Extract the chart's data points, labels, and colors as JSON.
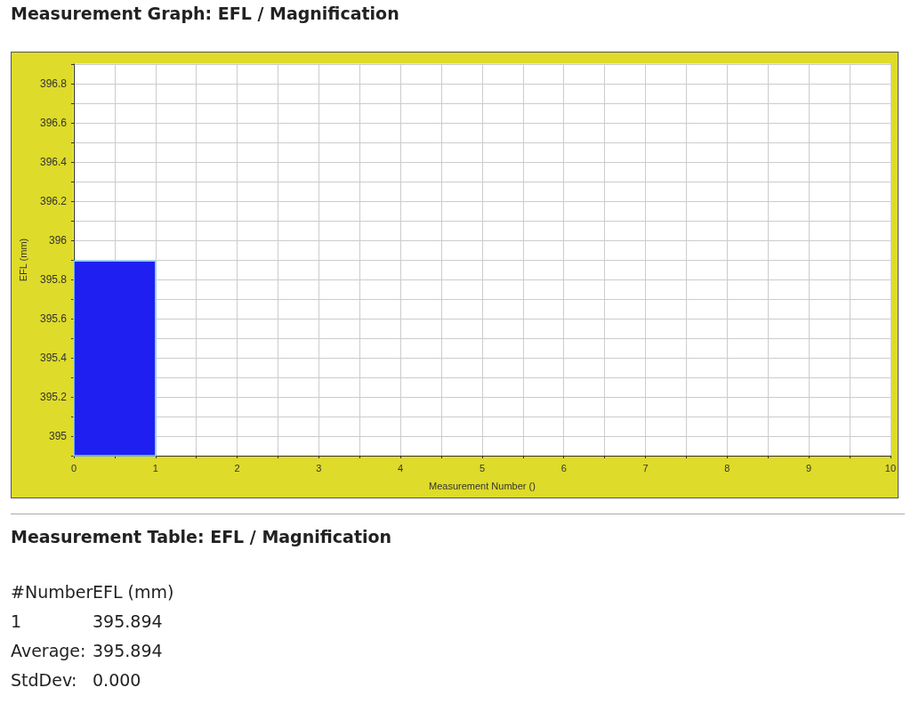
{
  "chart_data": {
    "type": "histogram",
    "title": "Measurement Graph: EFL / Magnification",
    "xlabel": "Measurement Number ()",
    "ylabel": "EFL (mm)",
    "bins": [
      0,
      1
    ],
    "values": [
      395.894
    ],
    "color": "#1f1ff2",
    "xlim": [
      0,
      10
    ],
    "xticks": [
      0,
      {
        "value": 0.5,
        "label": null
      },
      1,
      {
        "value": 1.5,
        "label": null
      },
      2,
      {
        "value": 2.5,
        "label": null
      },
      3,
      {
        "value": 3.5,
        "label": null
      },
      4,
      {
        "value": 4.5,
        "label": null
      },
      5,
      {
        "value": 5.5,
        "label": null
      },
      6,
      {
        "value": 6.5,
        "label": null
      },
      7,
      {
        "value": 7.5,
        "label": null
      },
      8,
      {
        "value": 8.5,
        "label": null
      },
      9,
      {
        "value": 9.5,
        "label": null
      },
      10
    ],
    "ylim": [
      394.9,
      396.9
    ],
    "yticks": [
      {
        "value": 394.9,
        "label": null
      },
      395,
      {
        "value": 395.1,
        "label": null
      },
      395.2,
      {
        "value": 395.3,
        "label": null
      },
      395.4,
      {
        "value": 395.5,
        "label": null
      },
      395.6,
      {
        "value": 395.7,
        "label": null
      },
      395.8,
      {
        "value": 395.9,
        "label": null
      },
      396,
      {
        "value": 396.1,
        "label": null
      },
      396.2,
      {
        "value": 396.3,
        "label": null
      },
      396.4,
      {
        "value": 396.5,
        "label": null
      },
      396.6,
      {
        "value": 396.7,
        "label": null
      },
      396.8,
      {
        "value": 396.9,
        "label": null
      }
    ],
    "grid": true,
    "annotations": [
      "Measurement Table: EFL / Magnification",
      "#Number",
      "EFL (mm)",
      "1",
      "395.894",
      "Average:",
      "395.894",
      "StdDev:",
      "0.000"
    ]
  }
}
